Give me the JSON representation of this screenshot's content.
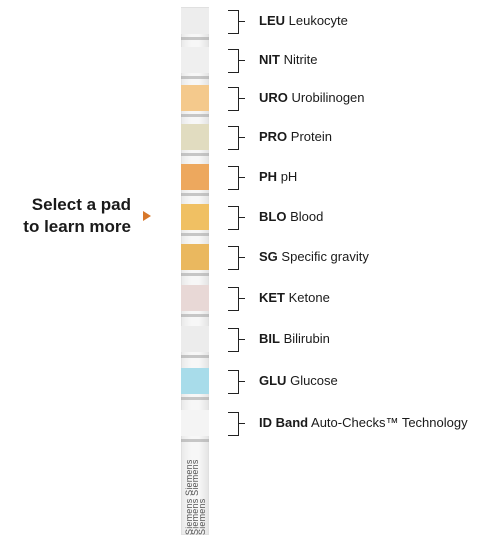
{
  "prompt": {
    "line1": "Select a pad",
    "line2": "to learn more"
  },
  "pads": [
    {
      "abbr": "LEU",
      "name": "Leukocyte",
      "color": "#ededed"
    },
    {
      "abbr": "NIT",
      "name": "Nitrite",
      "color": "#efefef"
    },
    {
      "abbr": "URO",
      "name": "Urobilinogen",
      "color": "#f4c98c"
    },
    {
      "abbr": "PRO",
      "name": "Protein",
      "color": "#e1dcc0"
    },
    {
      "abbr": "PH",
      "name": "pH",
      "color": "#eda85e"
    },
    {
      "abbr": "BLO",
      "name": "Blood",
      "color": "#f0c063"
    },
    {
      "abbr": "SG",
      "name": "Specific gravity",
      "color": "#eab85f"
    },
    {
      "abbr": "KET",
      "name": "Ketone",
      "color": "#e8d8d6"
    },
    {
      "abbr": "BIL",
      "name": "Bilirubin",
      "color": "#ececec"
    },
    {
      "abbr": "GLU",
      "name": "Glucose",
      "color": "#a8dcea"
    },
    {
      "abbr": "ID Band",
      "name": "Auto-Checks™ Technology",
      "color": "#f4f4f4"
    }
  ],
  "brand": [
    "Siemens Siemens",
    "Siemens Siemens",
    "Siemens"
  ],
  "accent_color": "#d7772a"
}
